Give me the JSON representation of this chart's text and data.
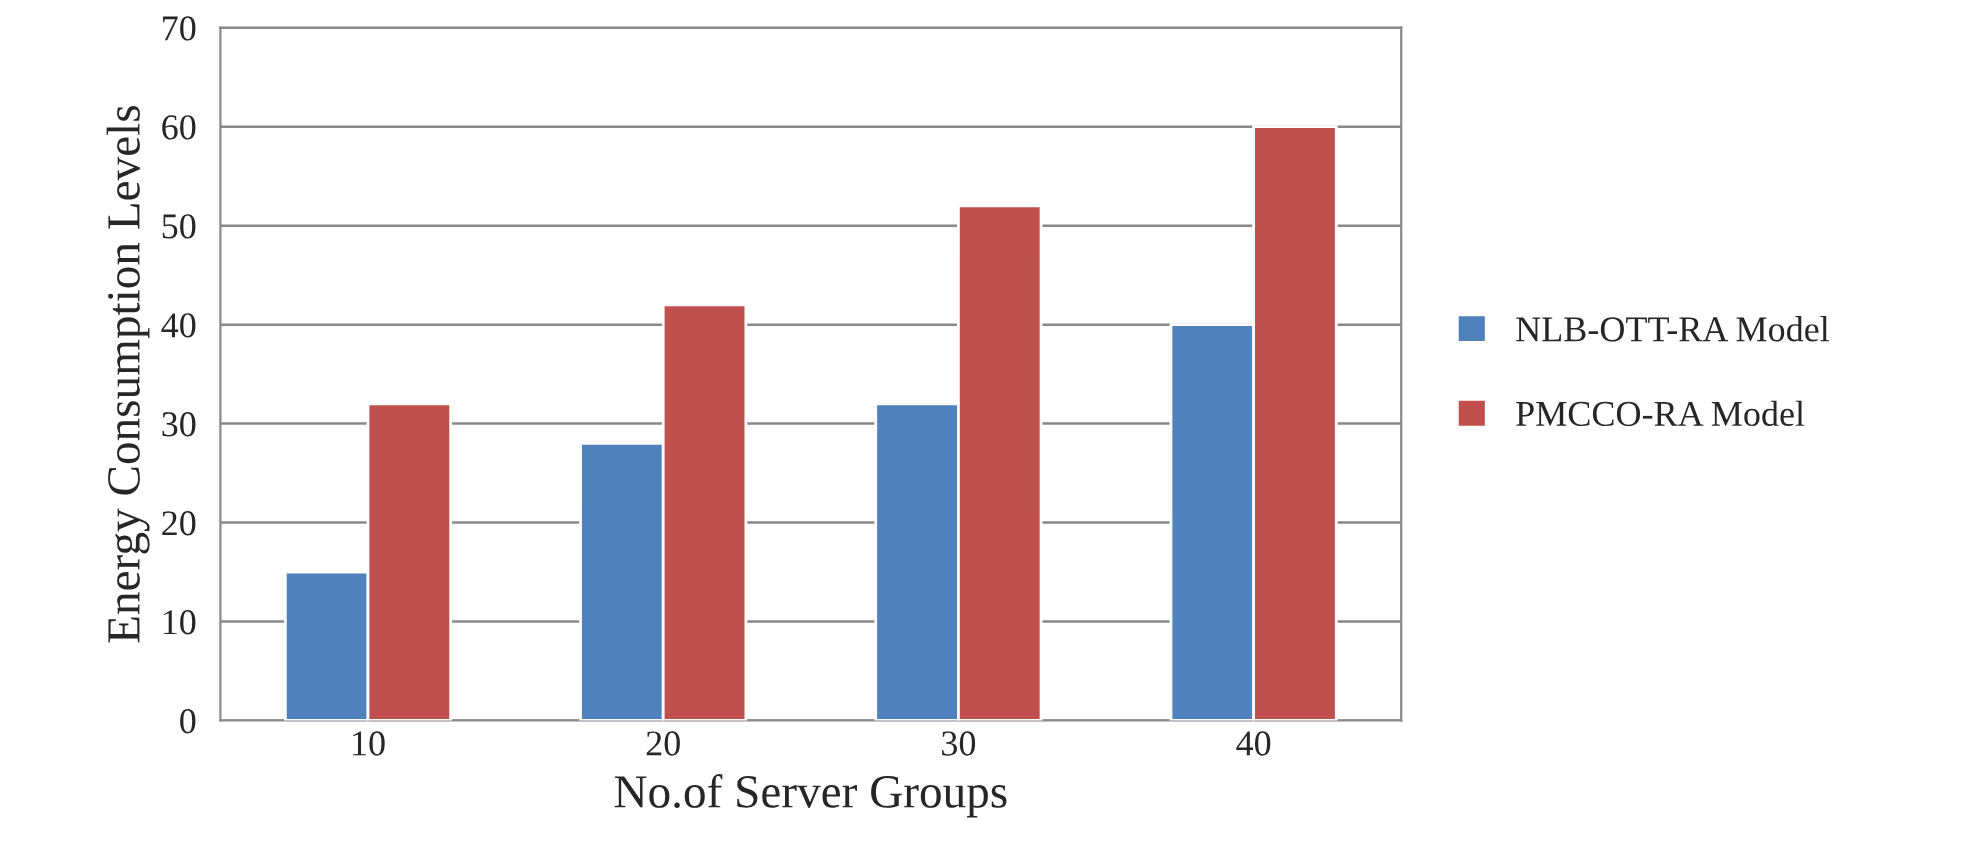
{
  "chart_data": {
    "type": "bar",
    "xlabel": "No.of Server Groups",
    "ylabel": "Energy Consumption Levels",
    "categories": [
      "10",
      "20",
      "30",
      "40"
    ],
    "series": [
      {
        "name": "NLB-OTT-RA Model",
        "color": "#4f81bd",
        "values": [
          15,
          28,
          32,
          40
        ]
      },
      {
        "name": "PMCCO-RA Model",
        "color": "#c0504d",
        "values": [
          32,
          42,
          52,
          60
        ]
      }
    ],
    "ylim": [
      0,
      70
    ],
    "yticks": [
      0,
      10,
      20,
      30,
      40,
      50,
      60,
      70
    ],
    "grid": "y",
    "legend": "right"
  }
}
